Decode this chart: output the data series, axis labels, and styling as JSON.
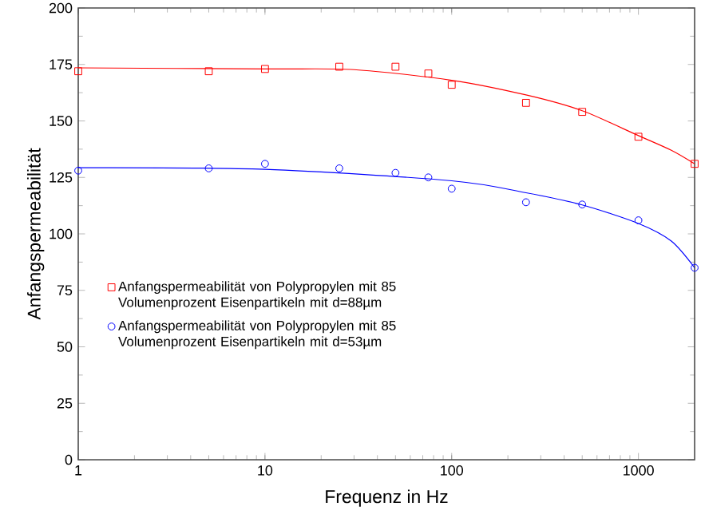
{
  "chart_data": {
    "type": "scatter",
    "xlabel": "Frequenz in Hz",
    "ylabel": "Anfangspermeabilität",
    "log": "x",
    "xlim": [
      1,
      2000
    ],
    "ylim": [
      0,
      200
    ],
    "xticks": [
      1,
      10,
      100,
      1000
    ],
    "yticks": [
      0,
      25,
      50,
      75,
      100,
      125,
      150,
      175,
      200
    ],
    "legend": "left",
    "grid": false,
    "series": [
      {
        "marker": "square",
        "name": "Anfangspermeabilität von Polypropylen mit 85 Volumenprozent Eisenpartikeln mit d=88µm",
        "color": "#ff0000",
        "x": [
          1,
          5,
          10,
          25,
          50,
          75,
          100,
          250,
          500,
          1000,
          2000
        ],
        "values": [
          172,
          172,
          173,
          174,
          174,
          171,
          166,
          158,
          154,
          143,
          131
        ]
      },
      {
        "marker": "circle",
        "name": "Anfangspermeabilität von Polypropylen mit 85 Volumenprozent Eisenpartikeln mit d=53µm",
        "color": "#0000ff",
        "x": [
          1,
          5,
          10,
          25,
          50,
          75,
          100,
          250,
          500,
          1000,
          2000
        ],
        "values": [
          128,
          129,
          131,
          129,
          127,
          125,
          120,
          114,
          113,
          106,
          85
        ]
      },
      {
        "type": "line",
        "marker": "none",
        "line_style": "solid",
        "color": "#ff0000",
        "x": [
          1,
          10,
          30,
          100,
          250,
          500,
          1000,
          1500,
          2000
        ],
        "values": [
          173.5,
          173,
          172.7,
          168,
          161.5,
          154.5,
          143.5,
          137,
          131
        ]
      },
      {
        "type": "line",
        "marker": "none",
        "line_style": "solid",
        "color": "#0000ff",
        "x": [
          1,
          10,
          100,
          250,
          500,
          1000,
          1500,
          2000
        ],
        "values": [
          129.3,
          128.6,
          123.5,
          118.2,
          112.8,
          104.6,
          96.8,
          85
        ]
      }
    ]
  }
}
